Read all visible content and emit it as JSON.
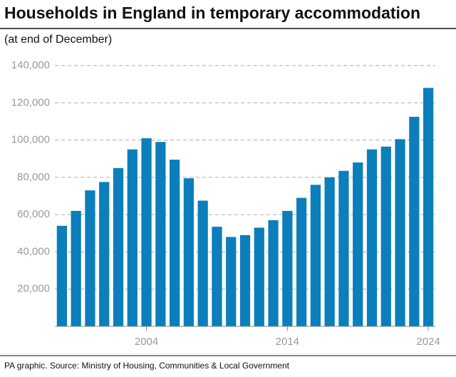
{
  "chart_data": {
    "type": "bar",
    "title": "Households in England in temporary accommodation",
    "subtitle": "(at end of December)",
    "source": "PA graphic. Source: Ministry of Housing, Communities & Local Government",
    "x": [
      1998,
      1999,
      2000,
      2001,
      2002,
      2003,
      2004,
      2005,
      2006,
      2007,
      2008,
      2009,
      2010,
      2011,
      2012,
      2013,
      2014,
      2015,
      2016,
      2017,
      2018,
      2019,
      2020,
      2021,
      2022,
      2023,
      2024
    ],
    "values": [
      54000,
      62000,
      73000,
      77500,
      85000,
      95000,
      101000,
      99000,
      89500,
      79500,
      67500,
      53500,
      48000,
      49000,
      53000,
      57000,
      62000,
      69000,
      76000,
      80000,
      83500,
      88000,
      95000,
      96500,
      100500,
      112500,
      128000
    ],
    "color": "#0a7fbc",
    "xlim": [
      1997.5,
      2024.5
    ],
    "xticks": [
      2004,
      2014,
      2024
    ],
    "ylim": [
      0,
      140000
    ],
    "yticks": [
      {
        "value": 20000,
        "label": "20,000"
      },
      {
        "value": 40000,
        "label": "40,000"
      },
      {
        "value": 60000,
        "label": "60,000"
      },
      {
        "value": 80000,
        "label": "80,000"
      },
      {
        "value": 100000,
        "label": "100,000"
      },
      {
        "value": 120000,
        "label": "120,000"
      },
      {
        "value": 140000,
        "label": "140,000"
      }
    ],
    "grid": true
  }
}
